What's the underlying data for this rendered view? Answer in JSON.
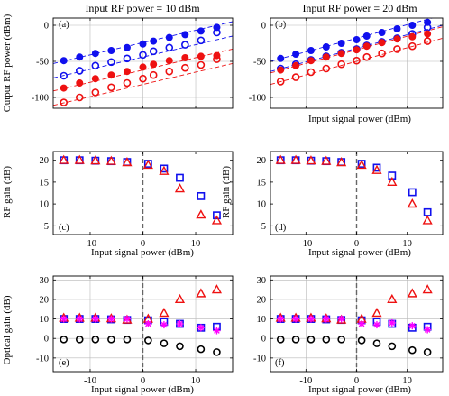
{
  "colors": {
    "blue": "#1010ee",
    "red": "#ee1111",
    "magenta": "#ff00ff",
    "black": "#000000",
    "axis": "#000000",
    "grid": "#b8b8b8",
    "dashed": "#666666"
  },
  "chart_data": [
    {
      "type": "scatter",
      "panel_label": "(a)",
      "title": "Input RF power = 10 dBm",
      "xlabel": "",
      "ylabel": "Output RF power  (dBm)",
      "xlim": [
        -17,
        17
      ],
      "ylim": [
        -115,
        10
      ],
      "xticks": [
        -10,
        0,
        10
      ],
      "yticks": [
        -100,
        -50,
        0
      ],
      "show_xticklabels": false,
      "grid": true,
      "x": [
        -15,
        -12,
        -9,
        -6,
        -3,
        0,
        2,
        5,
        8,
        11,
        14
      ],
      "series": [
        {
          "color": "blue",
          "marker": "filled-circle",
          "values": [
            -49,
            -44,
            -39,
            -35,
            -31,
            -26,
            -22,
            -17,
            -13,
            -8,
            -3
          ]
        },
        {
          "color": "blue",
          "marker": "open-circle",
          "values": [
            -70,
            -63,
            -56,
            -51,
            -46,
            -41,
            -36,
            -31,
            -27,
            -21,
            -10
          ]
        },
        {
          "color": "red",
          "marker": "filled-circle",
          "values": [
            -87,
            -80,
            -74,
            -69,
            -64,
            -58,
            -54,
            -49,
            -45,
            -43,
            -42
          ]
        },
        {
          "color": "red",
          "marker": "open-circle",
          "values": [
            -107,
            -100,
            -93,
            -86,
            -80,
            -74,
            -69,
            -64,
            -59,
            -55,
            -47
          ]
        }
      ],
      "fit_lines": [
        {
          "color": "blue",
          "x": [
            -17,
            17
          ],
          "y": [
            -53,
            5
          ]
        },
        {
          "color": "blue",
          "x": [
            -17,
            17
          ],
          "y": [
            -73,
            -15
          ]
        },
        {
          "color": "red",
          "x": [
            -17,
            17
          ],
          "y": [
            -91,
            -33
          ]
        },
        {
          "color": "red",
          "x": [
            -17,
            17
          ],
          "y": [
            -111,
            -53
          ]
        }
      ]
    },
    {
      "type": "scatter",
      "panel_label": "(b)",
      "title": "Input RF power = 20 dBm",
      "xlabel": "Input signal power  (dBm)",
      "ylabel": "",
      "xlim": [
        -17,
        17
      ],
      "ylim": [
        -115,
        10
      ],
      "xticks": [
        -10,
        0,
        10
      ],
      "yticks": [
        -100,
        -50,
        0
      ],
      "show_xticklabels": false,
      "grid": true,
      "x": [
        -15,
        -12,
        -9,
        -6,
        -3,
        0,
        2,
        5,
        8,
        11,
        14
      ],
      "series": [
        {
          "color": "blue",
          "marker": "filled-circle",
          "values": [
            -46,
            -40,
            -35,
            -30,
            -25,
            -20,
            -15,
            -10,
            -5,
            0,
            4
          ]
        },
        {
          "color": "blue",
          "marker": "open-circle",
          "values": [
            -60,
            -54,
            -48,
            -43,
            -38,
            -33,
            -28,
            -23,
            -18,
            -12,
            -3
          ]
        },
        {
          "color": "red",
          "marker": "filled-circle",
          "values": [
            -62,
            -56,
            -49,
            -44,
            -39,
            -34,
            -29,
            -24,
            -19,
            -16,
            -12
          ]
        },
        {
          "color": "red",
          "marker": "open-circle",
          "values": [
            -78,
            -72,
            -65,
            -60,
            -54,
            -49,
            -44,
            -39,
            -33,
            -29,
            -22
          ]
        }
      ],
      "fit_lines": [
        {
          "color": "blue",
          "x": [
            -17,
            17
          ],
          "y": [
            -50,
            14
          ]
        },
        {
          "color": "blue",
          "x": [
            -17,
            17
          ],
          "y": [
            -64,
            0
          ]
        },
        {
          "color": "red",
          "x": [
            -17,
            17
          ],
          "y": [
            -66,
            -2
          ]
        },
        {
          "color": "red",
          "x": [
            -17,
            17
          ],
          "y": [
            -82,
            -18
          ]
        }
      ]
    },
    {
      "type": "scatter",
      "panel_label": "(c)",
      "title": "",
      "xlabel": "Input signal power  (dBm)",
      "ylabel": "RF gain  (dB)",
      "xlim": [
        -17,
        17
      ],
      "ylim": [
        3,
        22
      ],
      "xticks": [
        -10,
        0,
        10
      ],
      "yticks": [
        5,
        10,
        15,
        20
      ],
      "show_xticklabels": true,
      "grid": false,
      "x": [
        -15,
        -12,
        -9,
        -6,
        -3,
        1,
        4,
        7,
        11,
        14
      ],
      "vline_x": 0,
      "series": [
        {
          "color": "blue",
          "marker": "open-square",
          "values": [
            20,
            20,
            19.9,
            19.8,
            19.6,
            19.2,
            18.1,
            16,
            11.8,
            7.4
          ]
        },
        {
          "color": "red",
          "marker": "open-triangle",
          "values": [
            20,
            20,
            19.9,
            19.8,
            19.5,
            18.9,
            17.5,
            13.5,
            7.5,
            6.2
          ]
        }
      ]
    },
    {
      "type": "scatter",
      "panel_label": "(d)",
      "title": "",
      "xlabel": "Input signal power  (dBm)",
      "ylabel": "RF gain  (dB)",
      "xlim": [
        -17,
        17
      ],
      "ylim": [
        3,
        22
      ],
      "xticks": [
        -10,
        0,
        10
      ],
      "yticks": [
        5,
        10,
        15,
        20
      ],
      "show_xticklabels": true,
      "grid": false,
      "x": [
        -15,
        -12,
        -9,
        -6,
        -3,
        1,
        4,
        7,
        11,
        14
      ],
      "vline_x": 0,
      "series": [
        {
          "color": "blue",
          "marker": "open-square",
          "values": [
            20,
            20,
            19.9,
            19.8,
            19.6,
            19.2,
            18.3,
            16.5,
            12.7,
            8.1
          ]
        },
        {
          "color": "red",
          "marker": "open-triangle",
          "values": [
            20,
            20,
            19.9,
            19.8,
            19.5,
            18.9,
            17.7,
            15,
            10,
            6.2
          ]
        }
      ]
    },
    {
      "type": "scatter",
      "panel_label": "(e)",
      "title": "",
      "xlabel": "Input signal power  (dBm)",
      "ylabel": "Optical gain  (dB)",
      "xlim": [
        -17,
        17
      ],
      "ylim": [
        -17,
        32
      ],
      "xticks": [
        -10,
        0,
        10
      ],
      "yticks": [
        -10,
        0,
        10,
        20,
        30
      ],
      "show_xticklabels": true,
      "grid": true,
      "x": [
        -15,
        -12,
        -9,
        -6,
        -3,
        1,
        4,
        7,
        11,
        14
      ],
      "vline_x": 0,
      "series": [
        {
          "color": "blue",
          "marker": "open-square",
          "values": [
            10,
            10,
            10,
            9.8,
            9.5,
            9.3,
            8.5,
            7.5,
            5.5,
            6
          ]
        },
        {
          "color": "red",
          "marker": "open-triangle",
          "values": [
            10.5,
            10.5,
            10.5,
            10.2,
            9.5,
            10,
            13,
            20,
            23,
            25
          ]
        },
        {
          "color": "magenta",
          "marker": "asterisk",
          "values": [
            10,
            10,
            10,
            10,
            10,
            7.5,
            7,
            7.5,
            5.5,
            4
          ]
        },
        {
          "color": "black",
          "marker": "open-circle",
          "values": [
            -0.5,
            -0.5,
            -0.5,
            -0.5,
            -0.5,
            -1,
            -2.5,
            -4,
            -5.5,
            -7
          ]
        }
      ]
    },
    {
      "type": "scatter",
      "panel_label": "(f)",
      "title": "",
      "xlabel": "Input signal power  (dBm)",
      "ylabel": "",
      "xlim": [
        -17,
        17
      ],
      "ylim": [
        -17,
        32
      ],
      "xticks": [
        -10,
        0,
        10
      ],
      "yticks": [
        -10,
        0,
        10,
        20,
        30
      ],
      "show_xticklabels": true,
      "grid": true,
      "x": [
        -15,
        -12,
        -9,
        -6,
        -3,
        1,
        4,
        7,
        11,
        14
      ],
      "vline_x": 0,
      "series": [
        {
          "color": "blue",
          "marker": "open-square",
          "values": [
            10,
            10,
            10,
            9.8,
            9.5,
            9.3,
            8.5,
            7.5,
            5.5,
            6
          ]
        },
        {
          "color": "red",
          "marker": "open-triangle",
          "values": [
            10.5,
            10.5,
            10.5,
            10.2,
            9.5,
            10,
            13,
            20,
            23,
            25
          ]
        },
        {
          "color": "magenta",
          "marker": "asterisk",
          "values": [
            10,
            10,
            10,
            10,
            10,
            7.5,
            7,
            8,
            6.5,
            4.5
          ]
        },
        {
          "color": "black",
          "marker": "open-circle",
          "values": [
            -0.5,
            -0.5,
            -0.5,
            -0.5,
            -0.5,
            -1,
            -2.5,
            -4,
            -6,
            -7
          ]
        }
      ]
    }
  ]
}
